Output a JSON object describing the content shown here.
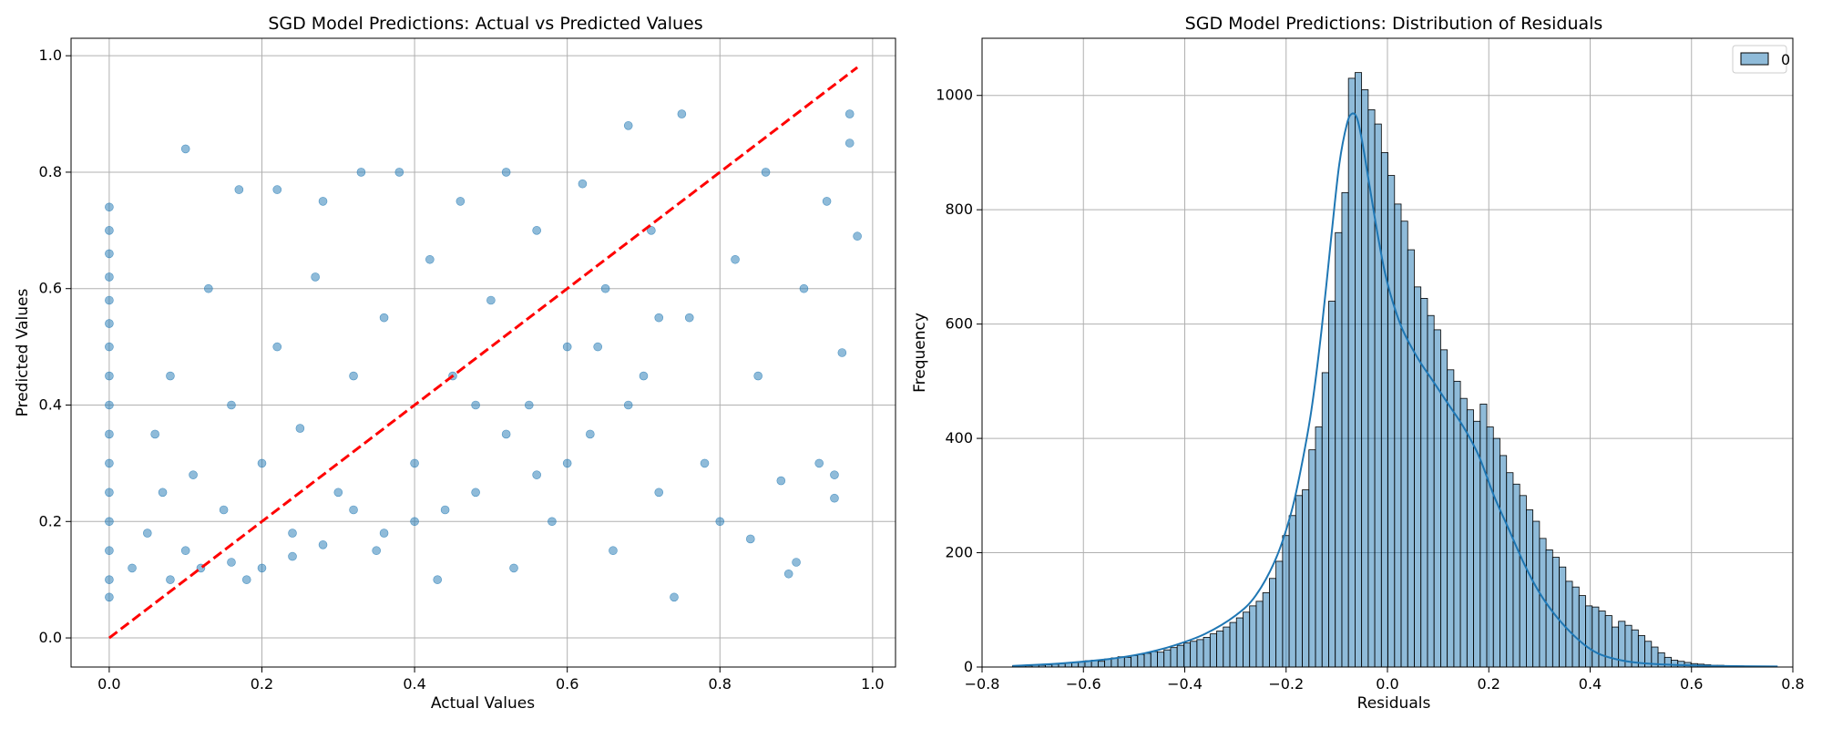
{
  "chart_data": [
    {
      "type": "scatter",
      "title": "SGD Model Predictions: Actual vs Predicted Values",
      "xlabel": "Actual Values",
      "ylabel": "Predicted Values",
      "xlim": [
        -0.05,
        1.03
      ],
      "ylim": [
        -0.05,
        1.03
      ],
      "xticks": [
        0.0,
        0.2,
        0.4,
        0.6,
        0.8,
        1.0
      ],
      "yticks": [
        0.0,
        0.2,
        0.4,
        0.6,
        0.8,
        1.0
      ],
      "xtick_labels": [
        "0.0",
        "0.2",
        "0.4",
        "0.6",
        "0.8",
        "1.0"
      ],
      "ytick_labels": [
        "0.0",
        "0.2",
        "0.4",
        "0.6",
        "0.8",
        "1.0"
      ],
      "grid": true,
      "point_color": "#1f77b4",
      "point_alpha": 0.5,
      "points": [
        [
          0.0,
          0.74
        ],
        [
          0.0,
          0.7
        ],
        [
          0.0,
          0.66
        ],
        [
          0.0,
          0.62
        ],
        [
          0.0,
          0.58
        ],
        [
          0.0,
          0.54
        ],
        [
          0.0,
          0.5
        ],
        [
          0.0,
          0.45
        ],
        [
          0.0,
          0.4
        ],
        [
          0.0,
          0.35
        ],
        [
          0.0,
          0.3
        ],
        [
          0.0,
          0.25
        ],
        [
          0.0,
          0.2
        ],
        [
          0.0,
          0.15
        ],
        [
          0.0,
          0.1
        ],
        [
          0.0,
          0.07
        ],
        [
          0.03,
          0.12
        ],
        [
          0.05,
          0.18
        ],
        [
          0.07,
          0.25
        ],
        [
          0.06,
          0.35
        ],
        [
          0.08,
          0.45
        ],
        [
          0.1,
          0.15
        ],
        [
          0.11,
          0.28
        ],
        [
          0.1,
          0.84
        ],
        [
          0.13,
          0.6
        ],
        [
          0.15,
          0.22
        ],
        [
          0.16,
          0.4
        ],
        [
          0.17,
          0.77
        ],
        [
          0.18,
          0.1
        ],
        [
          0.2,
          0.3
        ],
        [
          0.22,
          0.77
        ],
        [
          0.22,
          0.5
        ],
        [
          0.24,
          0.18
        ],
        [
          0.25,
          0.36
        ],
        [
          0.27,
          0.62
        ],
        [
          0.28,
          0.75
        ],
        [
          0.3,
          0.25
        ],
        [
          0.32,
          0.45
        ],
        [
          0.33,
          0.8
        ],
        [
          0.35,
          0.15
        ],
        [
          0.36,
          0.55
        ],
        [
          0.38,
          0.8
        ],
        [
          0.4,
          0.3
        ],
        [
          0.42,
          0.65
        ],
        [
          0.43,
          0.1
        ],
        [
          0.45,
          0.45
        ],
        [
          0.46,
          0.75
        ],
        [
          0.48,
          0.25
        ],
        [
          0.5,
          0.58
        ],
        [
          0.52,
          0.8
        ],
        [
          0.53,
          0.12
        ],
        [
          0.55,
          0.4
        ],
        [
          0.56,
          0.7
        ],
        [
          0.58,
          0.2
        ],
        [
          0.6,
          0.5
        ],
        [
          0.62,
          0.78
        ],
        [
          0.63,
          0.35
        ],
        [
          0.65,
          0.6
        ],
        [
          0.66,
          0.15
        ],
        [
          0.68,
          0.88
        ],
        [
          0.7,
          0.45
        ],
        [
          0.71,
          0.7
        ],
        [
          0.72,
          0.25
        ],
        [
          0.74,
          0.07
        ],
        [
          0.75,
          0.9
        ],
        [
          0.76,
          0.55
        ],
        [
          0.78,
          0.3
        ],
        [
          0.8,
          0.2
        ],
        [
          0.82,
          0.65
        ],
        [
          0.84,
          0.17
        ],
        [
          0.85,
          0.45
        ],
        [
          0.86,
          0.8
        ],
        [
          0.88,
          0.27
        ],
        [
          0.89,
          0.11
        ],
        [
          0.9,
          0.13
        ],
        [
          0.91,
          0.6
        ],
        [
          0.93,
          0.3
        ],
        [
          0.94,
          0.75
        ],
        [
          0.95,
          0.24
        ],
        [
          0.96,
          0.49
        ],
        [
          0.97,
          0.85
        ],
        [
          0.98,
          0.69
        ],
        [
          0.97,
          0.9
        ],
        [
          0.95,
          0.28
        ],
        [
          0.72,
          0.55
        ],
        [
          0.68,
          0.4
        ],
        [
          0.64,
          0.5
        ],
        [
          0.6,
          0.3
        ],
        [
          0.56,
          0.28
        ],
        [
          0.52,
          0.35
        ],
        [
          0.48,
          0.4
        ],
        [
          0.44,
          0.22
        ],
        [
          0.4,
          0.2
        ],
        [
          0.36,
          0.18
        ],
        [
          0.32,
          0.22
        ],
        [
          0.28,
          0.16
        ],
        [
          0.24,
          0.14
        ],
        [
          0.2,
          0.12
        ],
        [
          0.16,
          0.13
        ],
        [
          0.12,
          0.12
        ],
        [
          0.08,
          0.1
        ]
      ],
      "reference_line": {
        "from": [
          0.0,
          0.0
        ],
        "to": [
          0.98,
          0.98
        ],
        "color": "#ff0000",
        "style": "dashed"
      }
    },
    {
      "type": "histogram",
      "title": "SGD Model Predictions: Distribution of Residuals",
      "xlabel": "Residuals",
      "ylabel": "Frequency",
      "xlim": [
        -0.8,
        0.8
      ],
      "ylim": [
        0,
        1100
      ],
      "xticks": [
        -0.8,
        -0.6,
        -0.4,
        -0.2,
        0.0,
        0.2,
        0.4,
        0.6,
        0.8
      ],
      "yticks": [
        0,
        200,
        400,
        600,
        800,
        1000
      ],
      "xtick_labels": [
        "−0.8",
        "−0.6",
        "−0.4",
        "−0.2",
        "0.0",
        "0.2",
        "0.4",
        "0.6",
        "0.8"
      ],
      "ytick_labels": [
        "0",
        "200",
        "400",
        "600",
        "800",
        "1000"
      ],
      "grid": true,
      "legend": {
        "placement": "top-right",
        "entries": [
          "0"
        ]
      },
      "bar_color": "#1f77b4",
      "bar_alpha": 0.5,
      "kde_color": "#1f77b4",
      "bin_start": -0.74,
      "bin_width": 0.013,
      "counts": [
        2,
        2,
        2,
        3,
        3,
        4,
        5,
        6,
        7,
        8,
        9,
        11,
        12,
        10,
        14,
        16,
        18,
        17,
        20,
        22,
        24,
        27,
        26,
        30,
        34,
        38,
        42,
        45,
        48,
        52,
        58,
        63,
        70,
        78,
        86,
        96,
        107,
        115,
        130,
        155,
        185,
        230,
        265,
        300,
        310,
        380,
        420,
        515,
        640,
        760,
        830,
        1030,
        1040,
        1010,
        975,
        950,
        900,
        860,
        810,
        780,
        730,
        665,
        645,
        615,
        590,
        555,
        520,
        500,
        470,
        450,
        430,
        460,
        420,
        400,
        370,
        340,
        320,
        300,
        275,
        255,
        225,
        205,
        192,
        175,
        150,
        140,
        125,
        107,
        105,
        98,
        90,
        70,
        80,
        73,
        65,
        55,
        45,
        35,
        25,
        17,
        12,
        10,
        8,
        6,
        5,
        4,
        3,
        3,
        2,
        2,
        2,
        1,
        1,
        1,
        1
      ],
      "kde": [
        [
          -0.74,
          2
        ],
        [
          -0.65,
          6
        ],
        [
          -0.55,
          14
        ],
        [
          -0.48,
          24
        ],
        [
          -0.42,
          38
        ],
        [
          -0.36,
          58
        ],
        [
          -0.3,
          90
        ],
        [
          -0.26,
          125
        ],
        [
          -0.22,
          190
        ],
        [
          -0.19,
          270
        ],
        [
          -0.17,
          350
        ],
        [
          -0.15,
          450
        ],
        [
          -0.13,
          590
        ],
        [
          -0.11,
          760
        ],
        [
          -0.095,
          880
        ],
        [
          -0.08,
          950
        ],
        [
          -0.07,
          968
        ],
        [
          -0.06,
          960
        ],
        [
          -0.05,
          920
        ],
        [
          -0.035,
          840
        ],
        [
          -0.02,
          760
        ],
        [
          -0.005,
          690
        ],
        [
          0.01,
          640
        ],
        [
          0.03,
          590
        ],
        [
          0.06,
          540
        ],
        [
          0.09,
          500
        ],
        [
          0.12,
          460
        ],
        [
          0.15,
          420
        ],
        [
          0.18,
          370
        ],
        [
          0.21,
          300
        ],
        [
          0.24,
          240
        ],
        [
          0.27,
          180
        ],
        [
          0.3,
          130
        ],
        [
          0.33,
          92
        ],
        [
          0.36,
          62
        ],
        [
          0.39,
          38
        ],
        [
          0.42,
          22
        ],
        [
          0.46,
          12
        ],
        [
          0.5,
          7
        ],
        [
          0.56,
          4
        ],
        [
          0.65,
          2
        ],
        [
          0.77,
          1
        ]
      ]
    }
  ]
}
